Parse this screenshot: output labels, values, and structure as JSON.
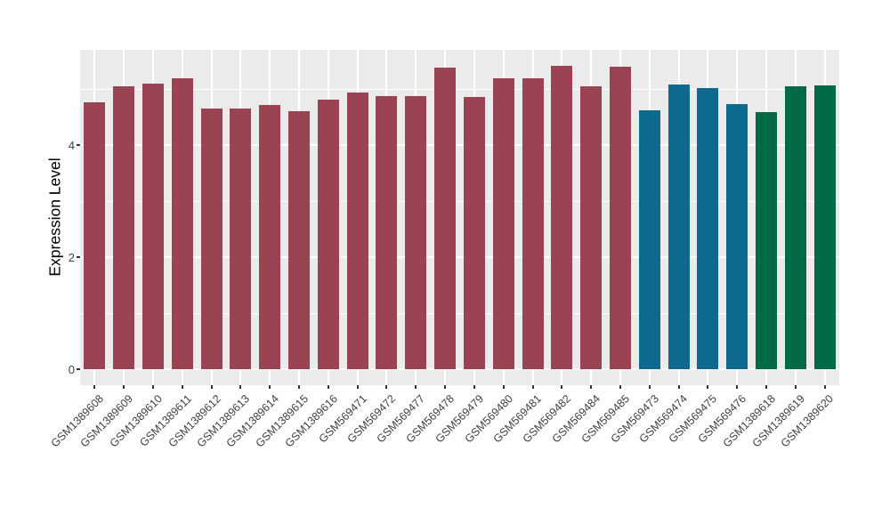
{
  "chart_data": {
    "type": "bar",
    "title": "",
    "xlabel": "",
    "ylabel": "Expression Level",
    "ylim": [
      0,
      5.7
    ],
    "yticks": [
      0,
      2,
      4
    ],
    "minor_gridlines": [
      1,
      3,
      5
    ],
    "grid": true,
    "legend_position": "none",
    "panel_bg": "#EBEBEB",
    "grid_color": "#FFFFFF",
    "palette": {
      "group_1": "#9A4352",
      "group_2": "#0E6A8C",
      "group_3": "#006947"
    },
    "categories": [
      "GSM1389608",
      "GSM1389609",
      "GSM1389610",
      "GSM1389611",
      "GSM1389612",
      "GSM1389613",
      "GSM1389614",
      "GSM1389615",
      "GSM1389616",
      "GSM569471",
      "GSM569472",
      "GSM569477",
      "GSM569478",
      "GSM569479",
      "GSM569480",
      "GSM569481",
      "GSM569482",
      "GSM569484",
      "GSM569485",
      "GSM569473",
      "GSM569474",
      "GSM569475",
      "GSM569476",
      "GSM1389618",
      "GSM1389619",
      "GSM1389620"
    ],
    "values": [
      4.76,
      5.05,
      5.1,
      5.19,
      4.65,
      4.65,
      4.72,
      4.6,
      4.81,
      4.93,
      4.88,
      4.87,
      5.38,
      4.85,
      5.19,
      5.19,
      5.41,
      5.05,
      5.4,
      4.62,
      5.08,
      5.02,
      4.73,
      4.58,
      5.04,
      5.06
    ],
    "bar_colors": [
      "#9A4352",
      "#9A4352",
      "#9A4352",
      "#9A4352",
      "#9A4352",
      "#9A4352",
      "#9A4352",
      "#9A4352",
      "#9A4352",
      "#9A4352",
      "#9A4352",
      "#9A4352",
      "#9A4352",
      "#9A4352",
      "#9A4352",
      "#9A4352",
      "#9A4352",
      "#9A4352",
      "#9A4352",
      "#0E6A8C",
      "#0E6A8C",
      "#0E6A8C",
      "#0E6A8C",
      "#006947",
      "#006947",
      "#006947"
    ]
  }
}
